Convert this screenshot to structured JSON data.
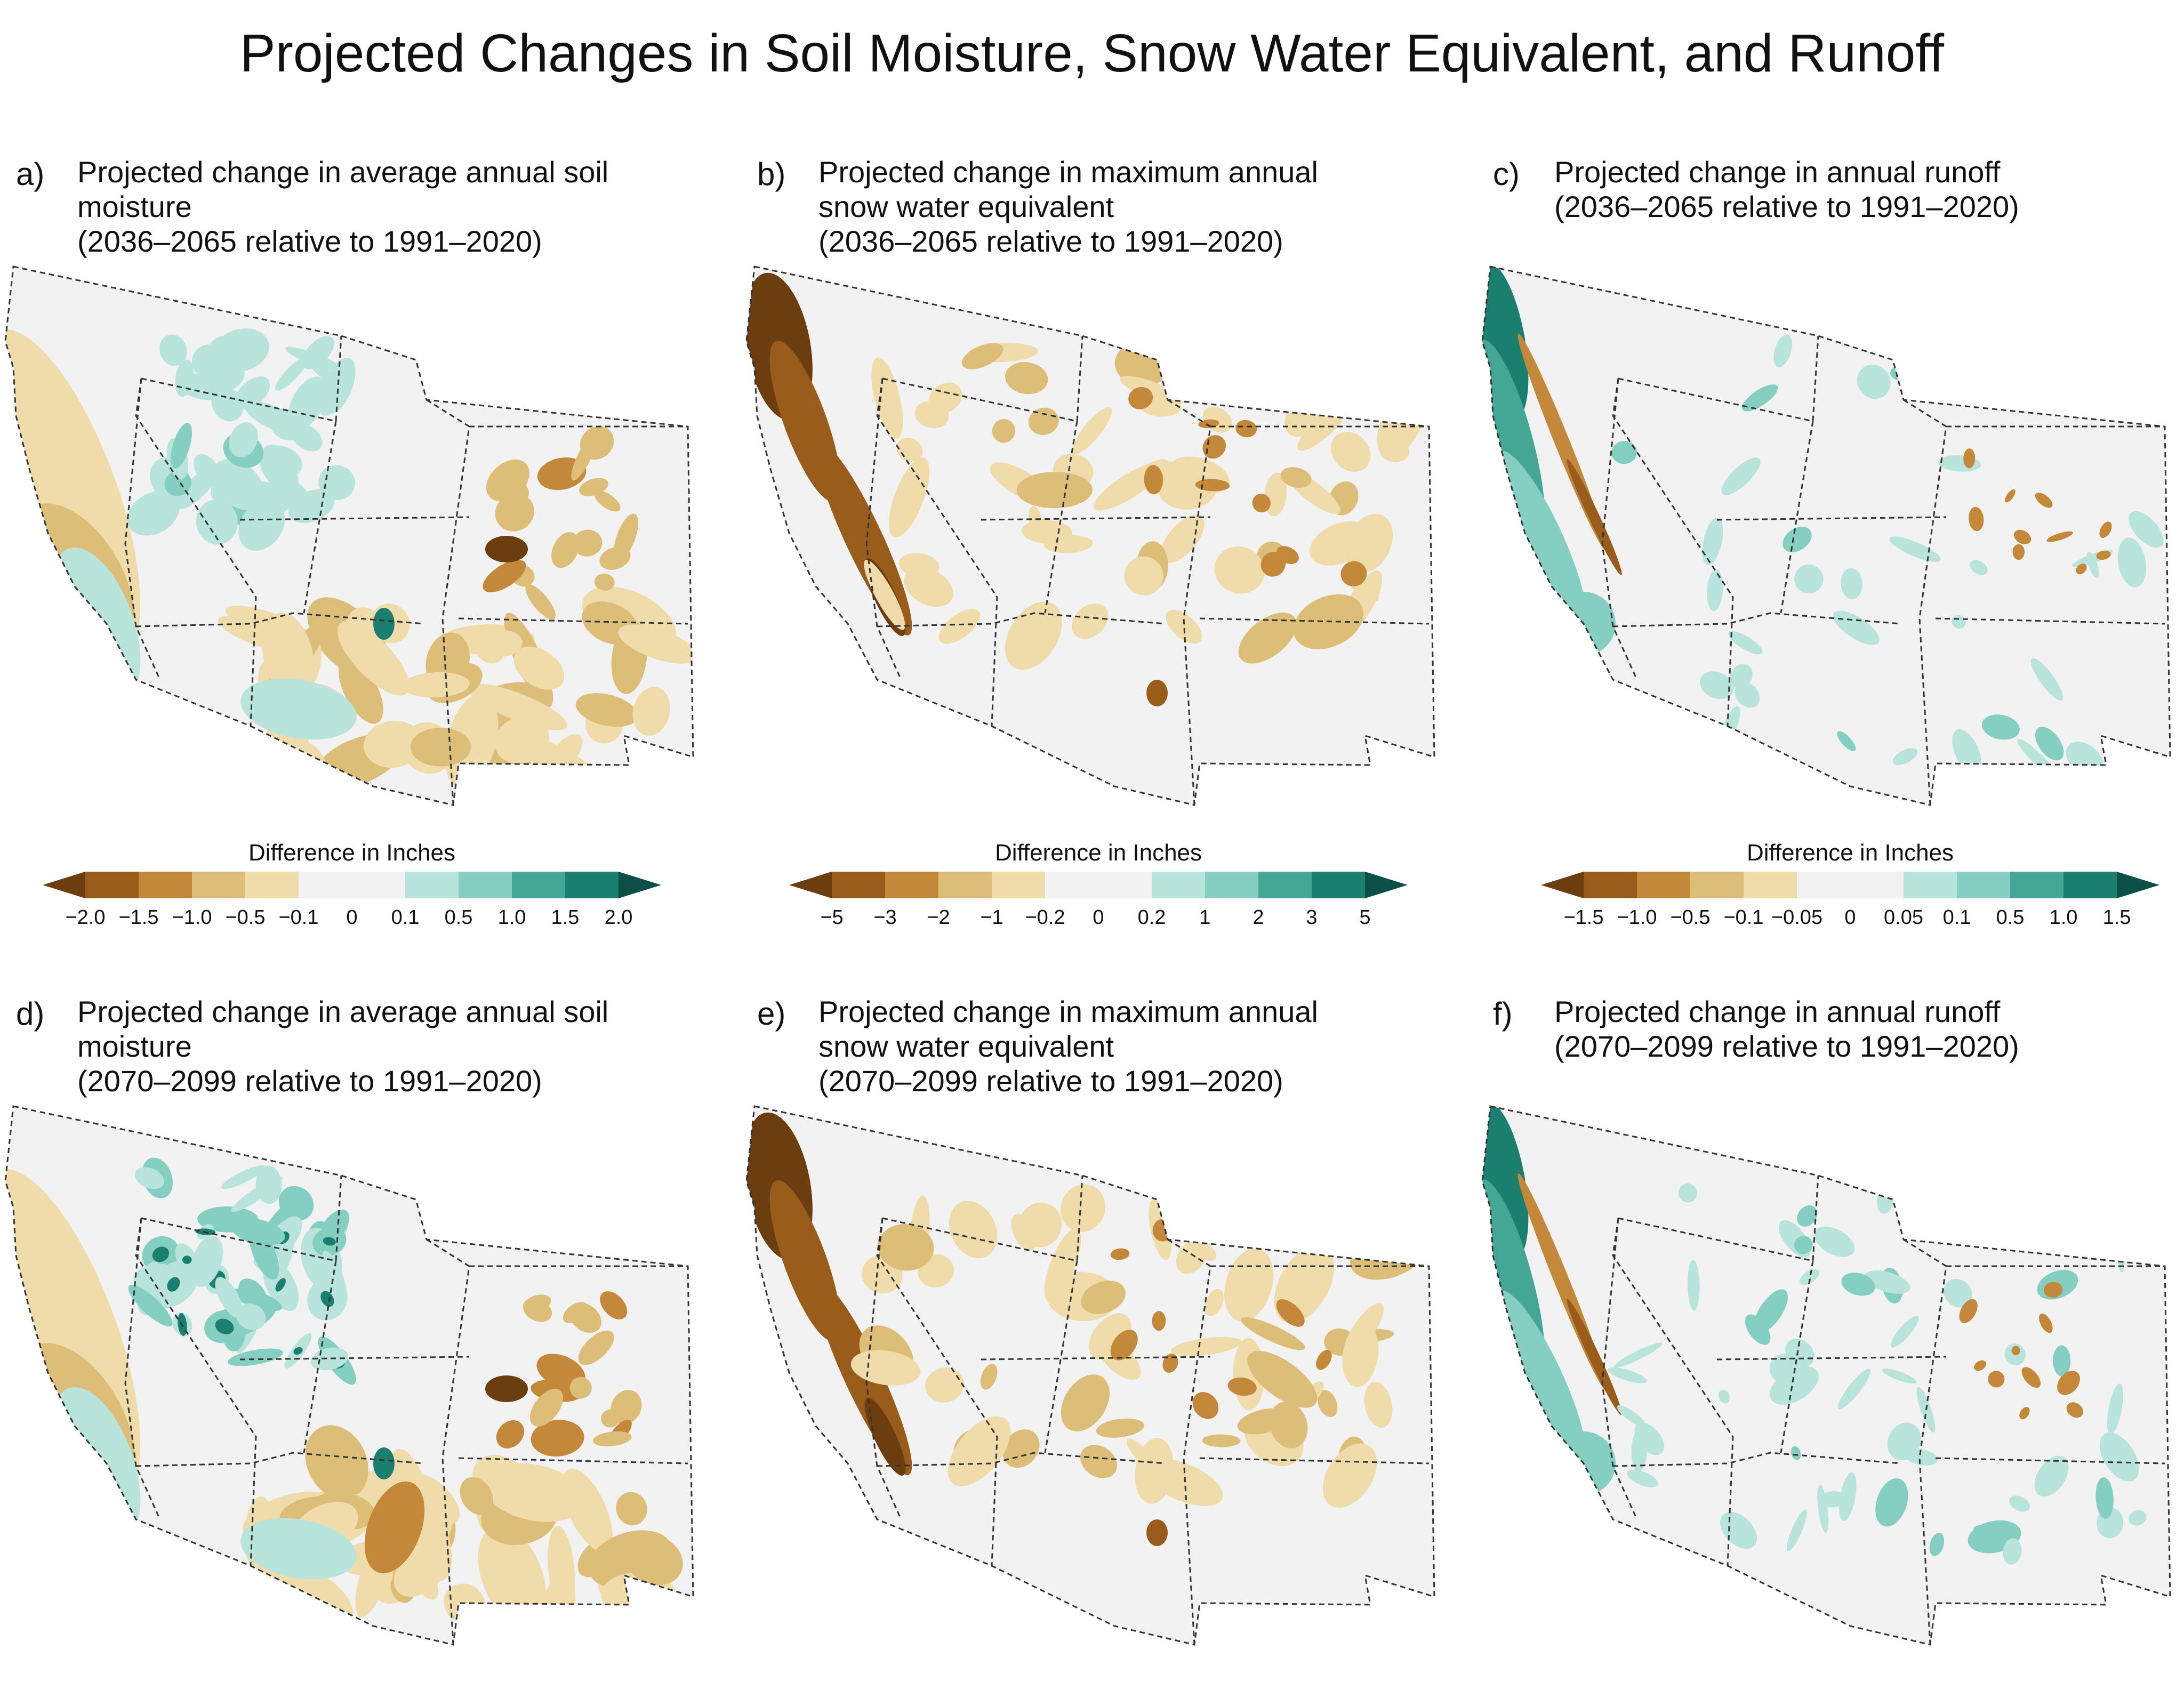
{
  "figure": {
    "title": "Projected Changes in Soil Moisture, Snow Water Equivalent, and Runoff"
  },
  "palette": {
    "strong_dry": "#6b3d0f",
    "dry5": "#9a5c1a",
    "dry4": "#c4883a",
    "dry3": "#ddbe78",
    "dry2": "#efdcaa",
    "neutral": "#f2f2f2",
    "wet2": "#b8e4dc",
    "wet3": "#84cfc2",
    "wet4": "#44a796",
    "wet5": "#1b7f70",
    "strong_wet": "#0c4f46",
    "border": "#333333"
  },
  "panels": [
    {
      "letter": "a)",
      "lines": [
        "Projected change in average annual soil moisture",
        "(2036–2065 relative to 1991–2020)"
      ],
      "pattern": "soil"
    },
    {
      "letter": "b)",
      "lines": [
        "Projected change in maximum annual",
        "snow water equivalent",
        "(2036–2065 relative to 1991–2020)"
      ],
      "pattern": "snow"
    },
    {
      "letter": "c)",
      "lines": [
        "Projected change in annual runoff",
        "(2036–2065 relative to 1991–2020)"
      ],
      "pattern": "runoff"
    },
    {
      "letter": "d)",
      "lines": [
        "Projected change in average annual soil moisture",
        "(2070–2099 relative to 1991–2020)"
      ],
      "pattern": "soil2"
    },
    {
      "letter": "e)",
      "lines": [
        "Projected change in maximum annual",
        "snow water equivalent",
        "(2070–2099 relative to 1991–2020)"
      ],
      "pattern": "snow2"
    },
    {
      "letter": "f)",
      "lines": [
        "Projected change in annual runoff",
        "(2070–2099 relative to 1991–2020)"
      ],
      "pattern": "runoff2"
    }
  ],
  "legends": [
    {
      "title": "Difference in Inches",
      "ticks": [
        "−2.0",
        "−1.5",
        "−1.0",
        "−0.5",
        "−0.1",
        "0",
        "0.1",
        "0.5",
        "1.0",
        "1.5",
        "2.0"
      ]
    },
    {
      "title": "Difference in Inches",
      "ticks": [
        "−5",
        "−3",
        "−2",
        "−1",
        "−0.2",
        "0",
        "0.2",
        "1",
        "2",
        "3",
        "5"
      ]
    },
    {
      "title": "Difference in Inches",
      "ticks": [
        "−1.5",
        "−1.0",
        "−0.5",
        "−0.1",
        "−0.05",
        "0",
        "0.05",
        "0.1",
        "0.5",
        "1.0",
        "1.5"
      ]
    }
  ]
}
